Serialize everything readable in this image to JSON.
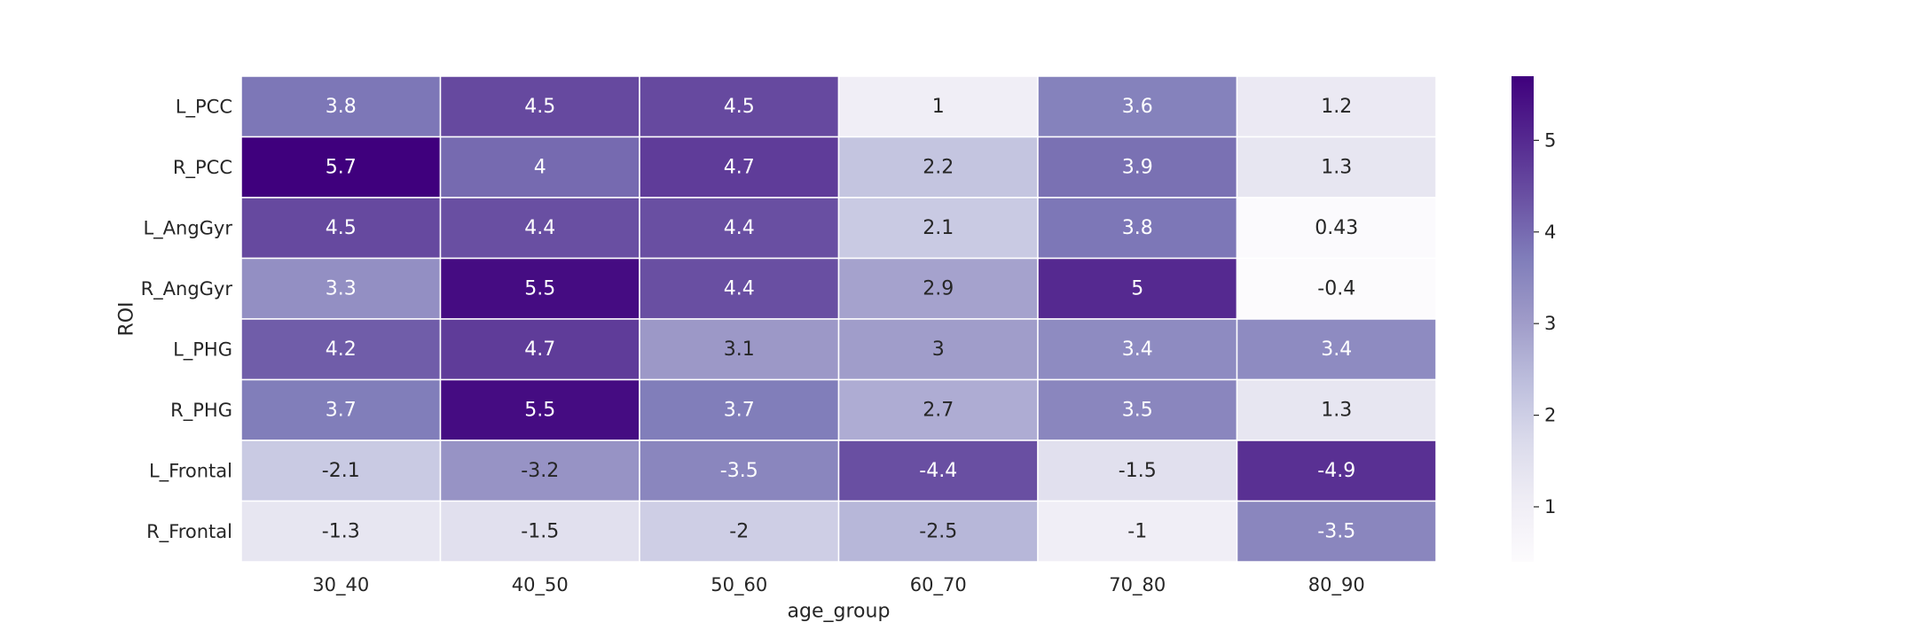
{
  "chart_data": {
    "type": "heatmap",
    "title": "",
    "xlabel": "age_group",
    "ylabel": "ROI",
    "x_categories": [
      "30_40",
      "40_50",
      "50_60",
      "60_70",
      "70_80",
      "80_90"
    ],
    "y_categories": [
      "L_PCC",
      "R_PCC",
      "L_AngGyr",
      "R_AngGyr",
      "L_PHG",
      "R_PHG",
      "L_Frontal",
      "R_Frontal"
    ],
    "color_values": [
      [
        3.8,
        4.5,
        4.5,
        1.0,
        3.6,
        1.2
      ],
      [
        5.7,
        4.0,
        4.7,
        2.2,
        3.9,
        1.3
      ],
      [
        4.5,
        4.4,
        4.4,
        2.1,
        3.8,
        0.43
      ],
      [
        3.3,
        5.5,
        4.4,
        2.9,
        5.0,
        0.4
      ],
      [
        4.2,
        4.7,
        3.1,
        3.0,
        3.4,
        3.4
      ],
      [
        3.7,
        5.5,
        3.7,
        2.7,
        3.5,
        1.3
      ],
      [
        2.1,
        3.2,
        3.5,
        4.4,
        1.5,
        4.9
      ],
      [
        1.3,
        1.5,
        2.0,
        2.5,
        1.0,
        3.5
      ]
    ],
    "annotations": [
      [
        "3.8",
        "4.5",
        "4.5",
        "1",
        "3.6",
        "1.2"
      ],
      [
        "5.7",
        "4",
        "4.7",
        "2.2",
        "3.9",
        "1.3"
      ],
      [
        "4.5",
        "4.4",
        "4.4",
        "2.1",
        "3.8",
        "0.43"
      ],
      [
        "3.3",
        "5.5",
        "4.4",
        "2.9",
        "5",
        "-0.4"
      ],
      [
        "4.2",
        "4.7",
        "3.1",
        "3",
        "3.4",
        "3.4"
      ],
      [
        "3.7",
        "5.5",
        "3.7",
        "2.7",
        "3.5",
        "1.3"
      ],
      [
        "-2.1",
        "-3.2",
        "-3.5",
        "-4.4",
        "-1.5",
        "-4.9"
      ],
      [
        "-1.3",
        "-1.5",
        "-2",
        "-2.5",
        "-1",
        "-3.5"
      ]
    ],
    "colorbar": {
      "min": 0.4,
      "max": 5.7,
      "ticks": [
        "1",
        "2",
        "3",
        "4",
        "5"
      ],
      "colormap": "Purples"
    },
    "grid": false
  }
}
